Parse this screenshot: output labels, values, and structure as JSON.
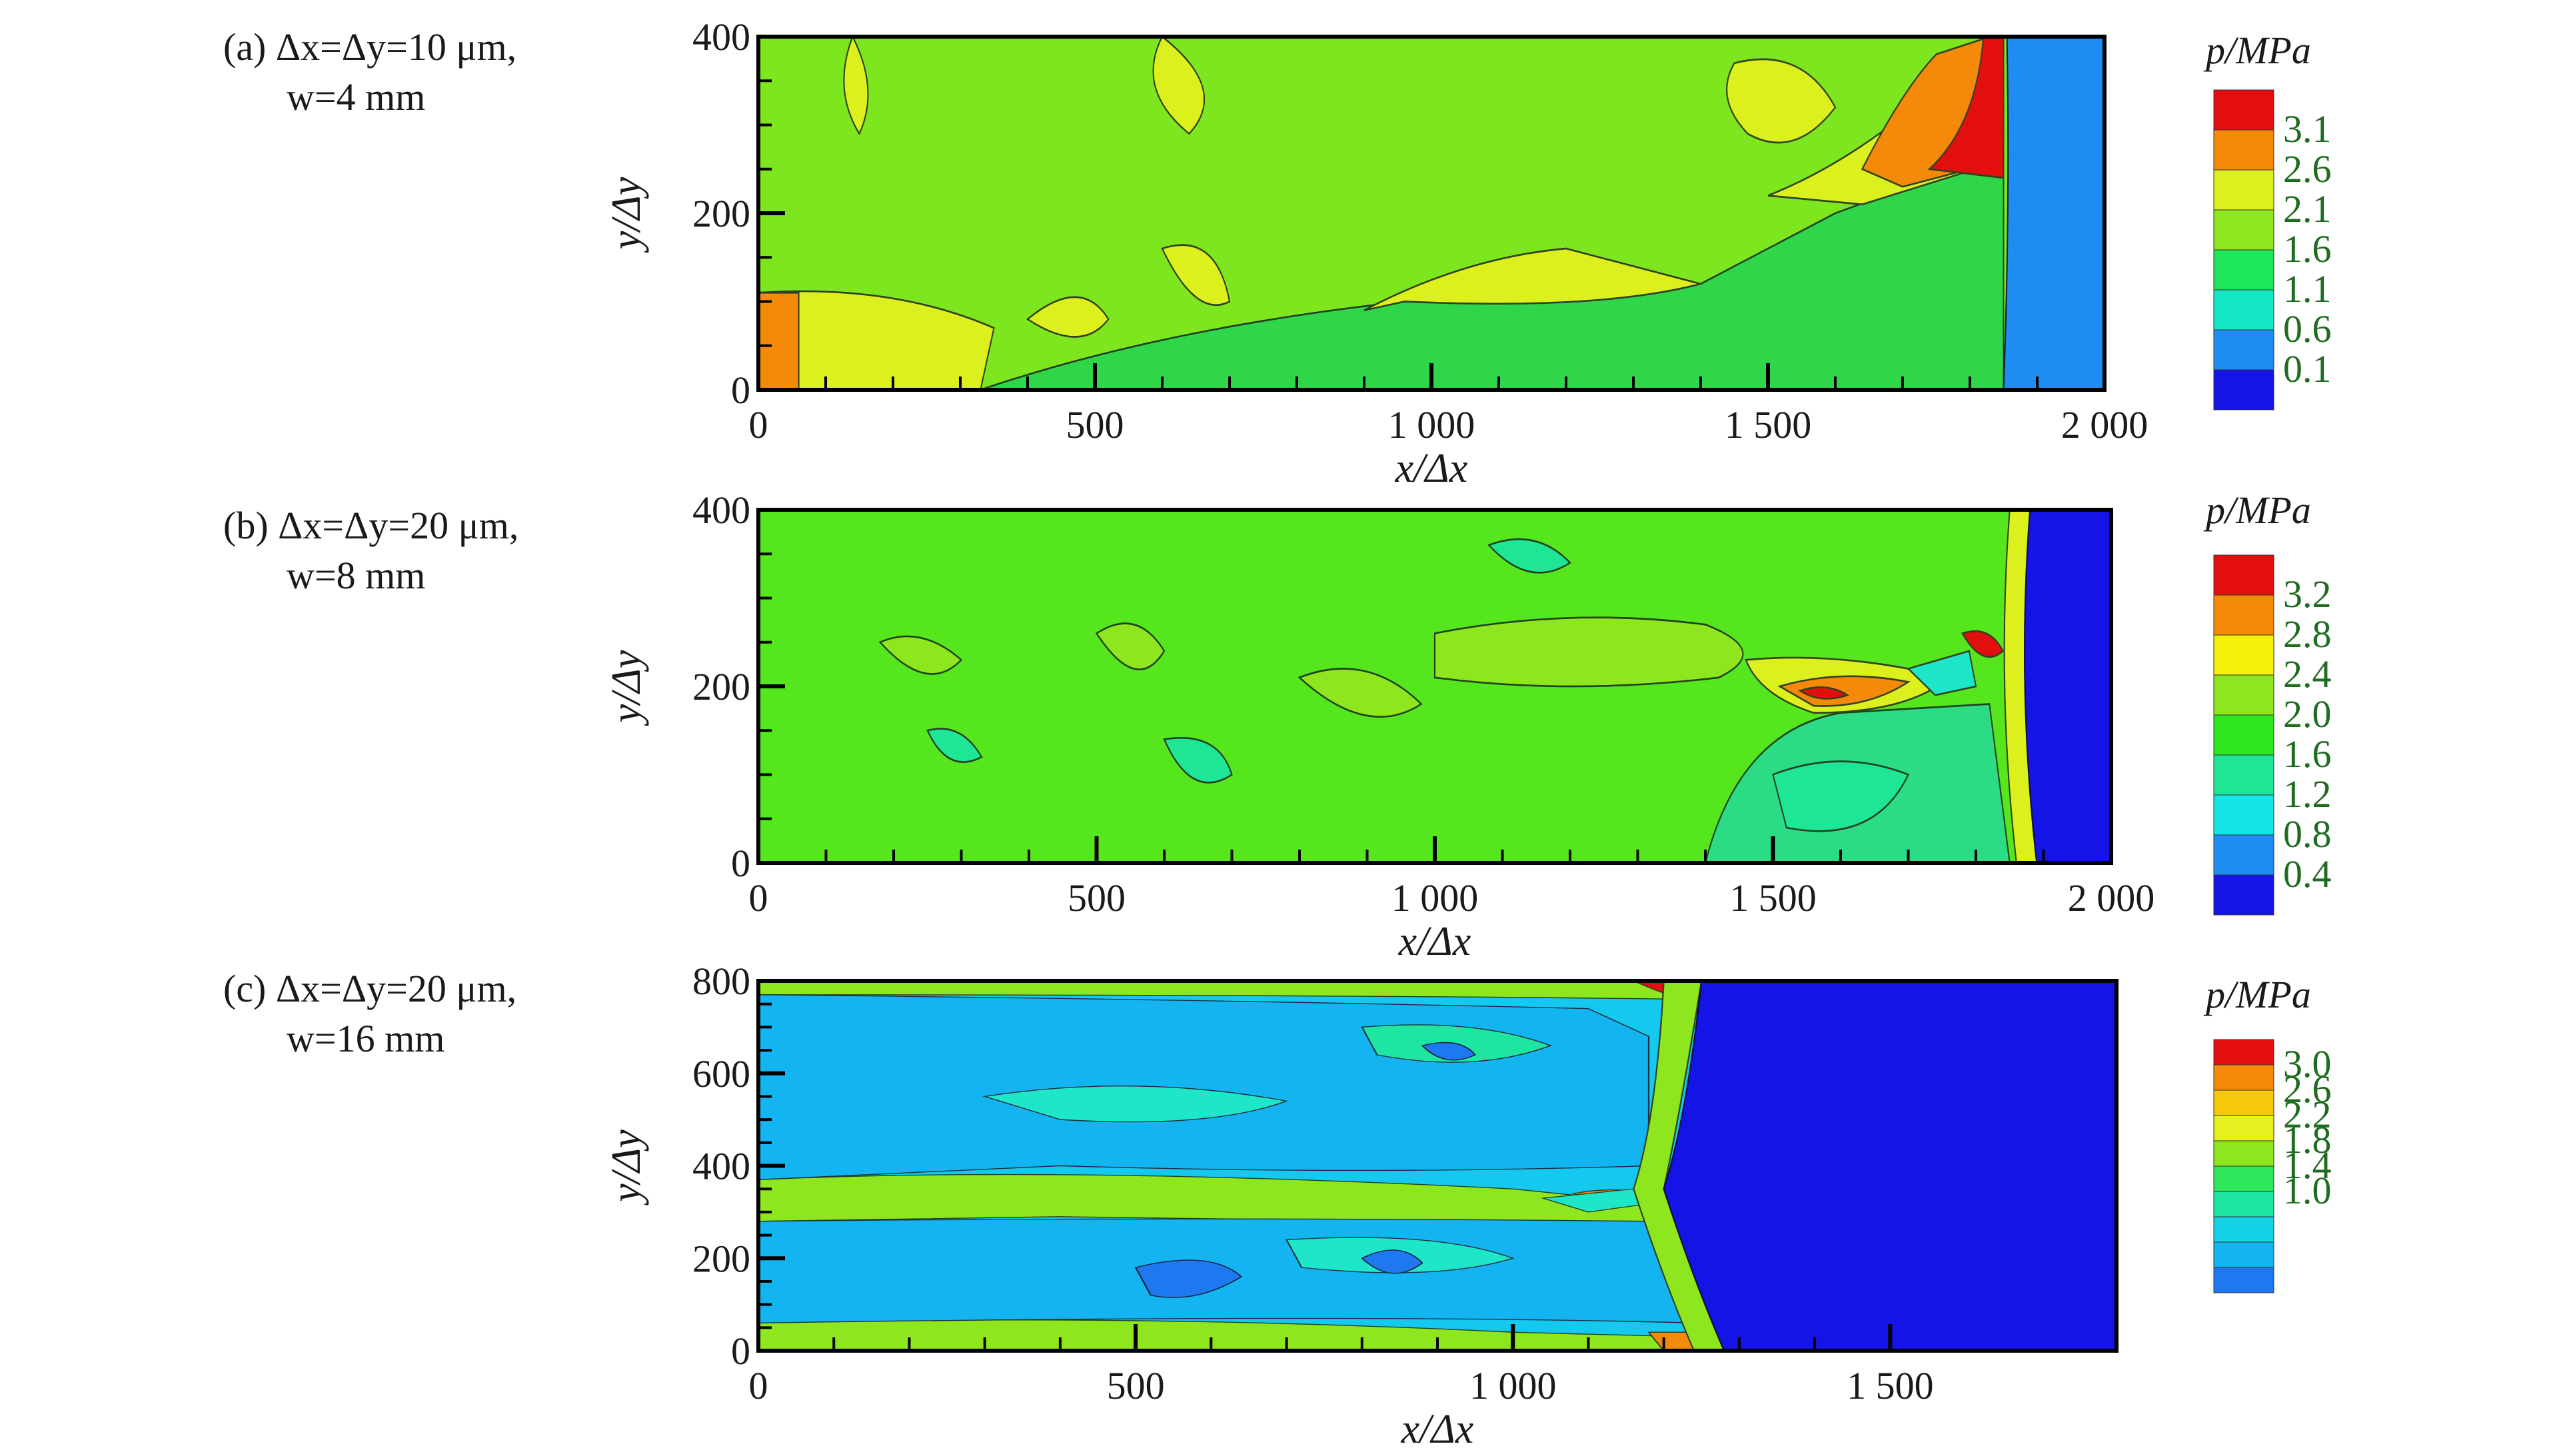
{
  "chart_data": [
    {
      "type": "heatmap",
      "panel_label": "(a) Δx=Δy=10 μm,",
      "panel_label_2": "w=4 mm",
      "xlabel": "x/Δx",
      "ylabel": "y/Δy",
      "xlim": [
        0,
        2000
      ],
      "ylim": [
        0,
        400
      ],
      "xticks": [
        "0",
        "500",
        "1 000",
        "1 500",
        "2 000"
      ],
      "yticks": [
        "0",
        "200",
        "400"
      ],
      "legend_title": "p/MPa",
      "legend_levels": [
        "3.1",
        "2.6",
        "2.1",
        "1.6",
        "1.1",
        "0.6",
        "0.1"
      ],
      "legend_colors": [
        "#e30f0f",
        "#f58a0a",
        "#dcf01e",
        "#8ee61e",
        "#1ee65a",
        "#14e6c8",
        "#1e8cf0",
        "#1414e6"
      ],
      "detonation_front_x": 1850,
      "region_colors": {
        "background": "#7de61e",
        "unburned": "#1e8cf0",
        "high": "#f58a0a",
        "peak": "#e30f0f",
        "mid": "#dcf01e",
        "low": "#1ee65a"
      }
    },
    {
      "type": "heatmap",
      "panel_label": "(b) Δx=Δy=20 μm,",
      "panel_label_2": "w=8 mm",
      "xlabel": "x/Δx",
      "ylabel": "y/Δy",
      "xlim": [
        0,
        2000
      ],
      "ylim": [
        0,
        400
      ],
      "xticks": [
        "0",
        "500",
        "1 000",
        "1 500",
        "2 000"
      ],
      "yticks": [
        "0",
        "200",
        "400"
      ],
      "legend_title": "p/MPa",
      "legend_levels": [
        "3.2",
        "2.8",
        "2.4",
        "2.0",
        "1.6",
        "1.2",
        "0.8",
        "0.4"
      ],
      "legend_colors": [
        "#e30f0f",
        "#f58a0a",
        "#f5f00a",
        "#8ee61e",
        "#2ee61e",
        "#1ee696",
        "#14e6e6",
        "#1e8cf0",
        "#1414e6"
      ],
      "detonation_front_x": 1870,
      "region_colors": {
        "background": "#55e61e",
        "unburned": "#1414e6",
        "high": "#f58a0a",
        "peak": "#e30f0f",
        "mid": "#a0e61e",
        "low": "#1ee696"
      }
    },
    {
      "type": "heatmap",
      "panel_label": "(c) Δx=Δy=20 μm,",
      "panel_label_2": "w=16 mm",
      "xlabel": "x/Δx",
      "ylabel": "y/Δy",
      "xlim": [
        0,
        1800
      ],
      "ylim": [
        0,
        800
      ],
      "xticks": [
        "0",
        "500",
        "1 000",
        "1 500"
      ],
      "yticks": [
        "0",
        "200",
        "400",
        "600",
        "800"
      ],
      "legend_title": "p/MPa",
      "legend_levels": [
        "3.0",
        "2.6",
        "2.2",
        "1.8",
        "1.4",
        "1.0"
      ],
      "legend_colors": [
        "#e30f0f",
        "#f58a0a",
        "#f5c80a",
        "#e6f01e",
        "#8ee61e",
        "#2ee65a",
        "#1ee6a0",
        "#14d2e6",
        "#14b4f0",
        "#1e78f0"
      ],
      "detonation_front_x": 1240,
      "region_colors": {
        "background": "#14c8f0",
        "unburned": "#1414e6",
        "high": "#f58a0a",
        "peak": "#e30f0f",
        "mid": "#8ee61e",
        "low": "#1e8cf0"
      }
    }
  ]
}
